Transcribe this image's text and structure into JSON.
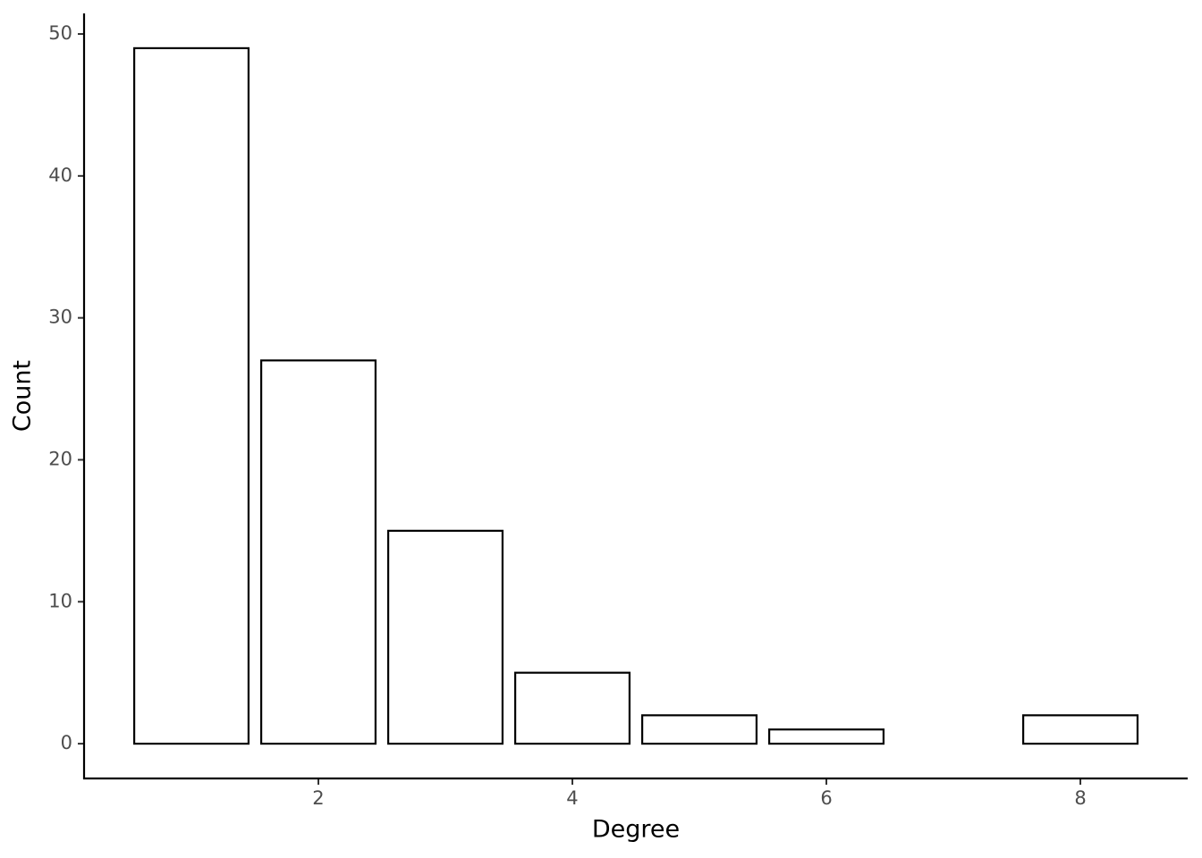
{
  "chart_data": {
    "type": "bar",
    "x_label": "Degree",
    "y_label": "Count",
    "x": [
      1,
      2,
      3,
      4,
      5,
      6,
      8
    ],
    "values": [
      49,
      27,
      15,
      5,
      2,
      1,
      2
    ],
    "color": "#ffffff",
    "edge_color": "#000000",
    "xlim": [
      0.155,
      8.845
    ],
    "xticks": [
      2,
      4,
      6,
      8
    ],
    "ylim": [
      -2.45,
      51.45
    ],
    "yticks": [
      0,
      10,
      20,
      30,
      40,
      50
    ],
    "grid": false
  }
}
